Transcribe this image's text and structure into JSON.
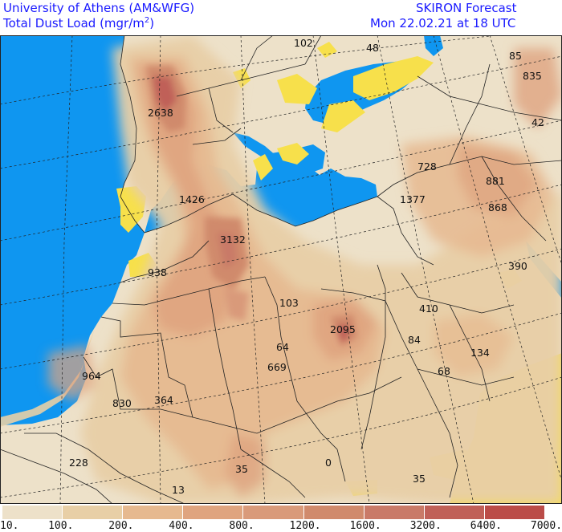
{
  "header": {
    "org": "University of Athens (AM&WFG)",
    "product": "SKIRON Forecast",
    "field": "Total Dust Load (mgr/m",
    "field_sup": "2",
    "field_tail": ")",
    "time": "Mon 22.02.21 at 18 UTC"
  },
  "colors": {
    "sea": "#0f96f0",
    "land_base": "#ede1c9",
    "yellow_low": "#f7e04b",
    "levels": [
      "#ede1c9",
      "#e8cfa6",
      "#e6b98f",
      "#dfa47f",
      "#d99a7a",
      "#d08a6c",
      "#c97a68",
      "#c06058",
      "#bb4c48",
      "#b9423f"
    ]
  },
  "map": {
    "labels": [
      {
        "id": "v102",
        "text": "102"
      },
      {
        "id": "v48",
        "text": "48"
      },
      {
        "id": "v85",
        "text": "85"
      },
      {
        "id": "v835",
        "text": "835"
      },
      {
        "id": "v42",
        "text": "42"
      },
      {
        "id": "v2638",
        "text": "2638"
      },
      {
        "id": "v728",
        "text": "728"
      },
      {
        "id": "v881",
        "text": "881"
      },
      {
        "id": "v1426",
        "text": "1426"
      },
      {
        "id": "v1377",
        "text": "1377"
      },
      {
        "id": "v868",
        "text": "868"
      },
      {
        "id": "v3132",
        "text": "3132"
      },
      {
        "id": "v390",
        "text": "390"
      },
      {
        "id": "v938",
        "text": "938"
      },
      {
        "id": "v103",
        "text": "103"
      },
      {
        "id": "v410",
        "text": "410"
      },
      {
        "id": "v2095",
        "text": "2095"
      },
      {
        "id": "v64",
        "text": "64"
      },
      {
        "id": "v84",
        "text": "84"
      },
      {
        "id": "v134",
        "text": "134"
      },
      {
        "id": "v669",
        "text": "669"
      },
      {
        "id": "v68",
        "text": "68"
      },
      {
        "id": "v964",
        "text": "964"
      },
      {
        "id": "v830",
        "text": "830"
      },
      {
        "id": "v364",
        "text": "364"
      },
      {
        "id": "v228",
        "text": "228"
      },
      {
        "id": "v35a",
        "text": "35"
      },
      {
        "id": "v0",
        "text": "0"
      },
      {
        "id": "v35b",
        "text": "35"
      },
      {
        "id": "v13",
        "text": "13"
      }
    ]
  },
  "colorbar": {
    "ticks": [
      "10.",
      "100.",
      "200.",
      "400.",
      "800.",
      "1200.",
      "1600.",
      "3200.",
      "6400.",
      "7000."
    ]
  }
}
